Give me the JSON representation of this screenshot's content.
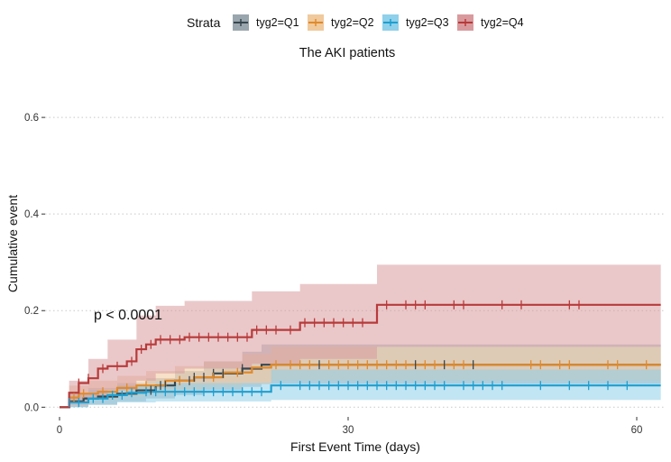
{
  "legend": {
    "title": "Strata",
    "items": [
      {
        "label": "tyg2=Q1",
        "color": "#37474f",
        "fill": "#9aa6ad"
      },
      {
        "label": "tyg2=Q2",
        "color": "#e08a2c",
        "fill": "#f0c99c"
      },
      {
        "label": "tyg2=Q3",
        "color": "#1f9fd0",
        "fill": "#8fd0ea"
      },
      {
        "label": "tyg2=Q4",
        "color": "#b83a3a",
        "fill": "#d99a9e"
      }
    ]
  },
  "chart_data": {
    "type": "line",
    "title": "The AKI patients",
    "xlabel": "First Event Time (days)",
    "ylabel": "Cumulative event",
    "xlim": [
      -1.5,
      63
    ],
    "ylim": [
      -0.02,
      0.66
    ],
    "x_ticks": [
      0,
      30,
      60
    ],
    "y_ticks": [
      0.0,
      0.2,
      0.4,
      0.6
    ],
    "y_tick_labels": [
      "0.0",
      "0.2",
      "0.4",
      "0.6"
    ],
    "grid": "horizontal dotted",
    "legend_position": "top",
    "annotation": "p < 0.0001",
    "x_max": 62.5,
    "series": [
      {
        "name": "tyg2=Q1",
        "steps": [
          [
            0,
            0
          ],
          [
            1,
            0.012
          ],
          [
            2.5,
            0.018
          ],
          [
            4,
            0.022
          ],
          [
            6,
            0.028
          ],
          [
            8,
            0.035
          ],
          [
            10,
            0.045
          ],
          [
            12,
            0.055
          ],
          [
            14,
            0.062
          ],
          [
            16,
            0.07
          ],
          [
            19,
            0.08
          ],
          [
            21,
            0.088
          ]
        ],
        "ci_low": [
          [
            0,
            0
          ],
          [
            1,
            0
          ],
          [
            3,
            0.005
          ],
          [
            6,
            0.012
          ],
          [
            9,
            0.018
          ],
          [
            12,
            0.025
          ],
          [
            15,
            0.035
          ],
          [
            19,
            0.042
          ],
          [
            21,
            0.048
          ]
        ],
        "ci_high": [
          [
            0,
            0
          ],
          [
            1,
            0.03
          ],
          [
            3,
            0.04
          ],
          [
            6,
            0.05
          ],
          [
            9,
            0.06
          ],
          [
            12,
            0.075
          ],
          [
            15,
            0.095
          ],
          [
            19,
            0.115
          ],
          [
            21,
            0.13
          ]
        ],
        "censor": [
          9.5,
          10.5,
          11,
          12.5,
          13.5,
          14,
          15,
          16,
          17,
          19,
          27,
          37,
          40,
          43
        ]
      },
      {
        "name": "tyg2=Q2",
        "steps": [
          [
            0,
            0
          ],
          [
            1,
            0.02
          ],
          [
            2,
            0.028
          ],
          [
            4,
            0.032
          ],
          [
            6,
            0.04
          ],
          [
            8,
            0.045
          ],
          [
            11,
            0.055
          ],
          [
            14,
            0.062
          ],
          [
            17,
            0.072
          ],
          [
            20,
            0.082
          ],
          [
            22,
            0.088
          ]
        ],
        "ci_low": [
          [
            0,
            0
          ],
          [
            1,
            0.005
          ],
          [
            3,
            0.015
          ],
          [
            6,
            0.022
          ],
          [
            9,
            0.028
          ],
          [
            12,
            0.035
          ],
          [
            15,
            0.042
          ],
          [
            19,
            0.05
          ],
          [
            22,
            0.055
          ]
        ],
        "ci_high": [
          [
            0,
            0
          ],
          [
            1,
            0.045
          ],
          [
            3,
            0.055
          ],
          [
            6,
            0.065
          ],
          [
            9,
            0.075
          ],
          [
            12,
            0.085
          ],
          [
            15,
            0.095
          ],
          [
            19,
            0.11
          ],
          [
            22,
            0.125
          ]
        ],
        "censor": [
          1.5,
          2.5,
          4.5,
          7,
          9,
          12.5,
          16,
          18.5,
          22.5,
          24,
          25,
          26,
          28,
          29,
          30,
          31,
          32,
          33,
          34,
          35,
          36,
          38,
          39,
          41,
          42,
          49,
          50,
          52,
          53,
          57,
          58,
          61
        ]
      },
      {
        "name": "tyg2=Q3",
        "steps": [
          [
            0,
            0
          ],
          [
            1,
            0.01
          ],
          [
            3,
            0.018
          ],
          [
            5,
            0.025
          ],
          [
            7,
            0.03
          ],
          [
            9,
            0.032
          ],
          [
            22,
            0.045
          ],
          [
            58,
            0.045
          ]
        ],
        "ci_low": [
          [
            0,
            0
          ],
          [
            1,
            0
          ],
          [
            3,
            0.005
          ],
          [
            6,
            0.01
          ],
          [
            10,
            0.012
          ],
          [
            22,
            0.015
          ]
        ],
        "ci_high": [
          [
            0,
            0
          ],
          [
            1,
            0.025
          ],
          [
            3,
            0.035
          ],
          [
            6,
            0.045
          ],
          [
            10,
            0.05
          ],
          [
            22,
            0.078
          ]
        ],
        "censor": [
          1,
          2,
          3.5,
          4.5,
          5.5,
          6.5,
          7.5,
          9,
          10,
          11,
          12,
          13,
          14,
          15,
          16,
          17,
          18,
          19,
          20,
          21,
          23,
          25,
          26,
          27,
          28,
          29,
          30,
          31,
          32,
          33,
          34,
          35,
          36,
          37,
          38,
          39,
          40,
          42,
          43,
          44,
          45,
          46,
          50,
          53,
          55,
          57,
          59
        ]
      },
      {
        "name": "tyg2=Q4",
        "steps": [
          [
            0,
            0
          ],
          [
            1,
            0.03
          ],
          [
            2,
            0.05
          ],
          [
            3,
            0.06
          ],
          [
            4,
            0.08
          ],
          [
            5,
            0.085
          ],
          [
            7,
            0.095
          ],
          [
            8,
            0.12
          ],
          [
            9,
            0.13
          ],
          [
            10,
            0.14
          ],
          [
            11,
            0.14
          ],
          [
            13,
            0.145
          ],
          [
            20,
            0.16
          ],
          [
            25,
            0.175
          ],
          [
            33,
            0.212
          ]
        ],
        "ci_low": [
          [
            0,
            0
          ],
          [
            1,
            0.005
          ],
          [
            3,
            0.02
          ],
          [
            5,
            0.035
          ],
          [
            8,
            0.055
          ],
          [
            10,
            0.07
          ],
          [
            13,
            0.08
          ],
          [
            20,
            0.09
          ],
          [
            25,
            0.1
          ],
          [
            33,
            0.125
          ]
        ],
        "ci_high": [
          [
            0,
            0
          ],
          [
            1,
            0.055
          ],
          [
            3,
            0.1
          ],
          [
            5,
            0.14
          ],
          [
            8,
            0.19
          ],
          [
            10,
            0.21
          ],
          [
            13,
            0.22
          ],
          [
            20,
            0.24
          ],
          [
            25,
            0.255
          ],
          [
            33,
            0.295
          ]
        ],
        "censor": [
          2,
          3,
          4.5,
          6,
          7.5,
          8.5,
          9.5,
          10.5,
          11.5,
          12.5,
          13.5,
          14.5,
          15.5,
          16.5,
          17.5,
          18.5,
          19.5,
          20.5,
          21.5,
          22.5,
          24,
          25.5,
          26.5,
          27.5,
          28.5,
          29.5,
          30.5,
          31.5,
          34,
          36,
          37,
          38,
          41,
          42,
          46,
          48,
          53,
          54
        ]
      }
    ]
  }
}
